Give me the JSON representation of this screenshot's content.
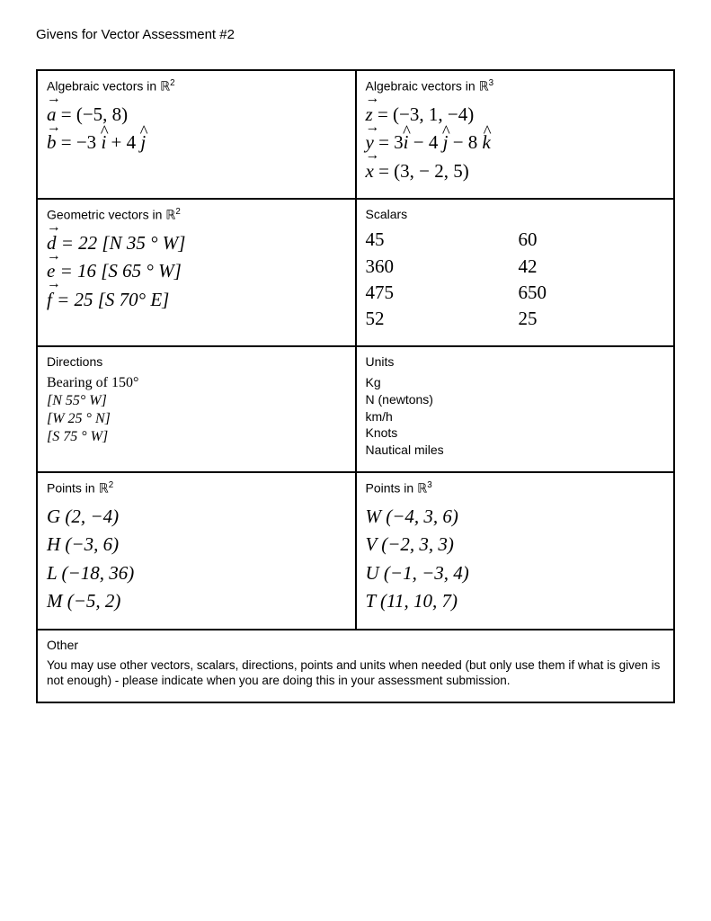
{
  "title": "Givens for Vector Assessment #2",
  "cells": {
    "alg_r2": {
      "header_pre": "Algebraic vectors in ",
      "space": "ℝ",
      "exp": "2",
      "a_lhs": "a",
      "a_rhs": " = (−5, 8)",
      "b_lhs": "b",
      "b_mid": " = −3 ",
      "b_i": "i",
      "b_plus": " + 4 ",
      "b_j": "j"
    },
    "alg_r3": {
      "header_pre": "Algebraic vectors in ",
      "space": "ℝ",
      "exp": "3",
      "z_lhs": "z",
      "z_rhs": " = (−3, 1, −4)",
      "y_lhs": "y",
      "y_eq": " = 3",
      "y_i": "i",
      "y_m4": " − 4 ",
      "y_j": "j",
      "y_m8": " − 8 ",
      "y_k": "k",
      "x_lhs": "x",
      "x_rhs": " = (3,  − 2,  5)"
    },
    "geo_r2": {
      "header_pre": "Geometric vectors in ",
      "space": "ℝ",
      "exp": "2",
      "d_lhs": "d",
      "d_rhs": " = 22  [N 35 ° W]",
      "e_lhs": "e",
      "e_rhs": " = 16  [S 65 °  W]",
      "f_lhs": "f",
      "f_rhs": " = 25  [S 70°  E]"
    },
    "scalars": {
      "header": "Scalars",
      "values": [
        "45",
        "60",
        "360",
        "42",
        "475",
        "650",
        "52",
        "25"
      ]
    },
    "directions": {
      "header": "Directions",
      "bearing_label": "Bearing of ",
      "bearing_value": "150°",
      "d1": "[N 55° W]",
      "d2": "[W 25 ° N]",
      "d3": "[S 75 ° W]"
    },
    "units": {
      "header": "Units",
      "u1": "Kg",
      "u2": "N (newtons)",
      "u3": "km/h",
      "u4": "Knots",
      "u5": "Nautical miles"
    },
    "pts_r2": {
      "header_pre": "Points in ",
      "space": "ℝ",
      "exp": "2",
      "p1": "G (2, −4)",
      "p2": "H (−3, 6)",
      "p3": "L (−18, 36)",
      "p4": "M (−5, 2)"
    },
    "pts_r3": {
      "header_pre": "Points in ",
      "space": "ℝ",
      "exp": "3",
      "p1": "W (−4, 3,  6)",
      "p2": "V (−2, 3,  3)",
      "p3": "U (−1, −3,  4)",
      "p4": "T (11, 10, 7)"
    },
    "other": {
      "header": "Other",
      "note": "You may use other vectors, scalars, directions, points and units when needed (but only use them if what is given is not enough) - please indicate when you are doing this in your assessment submission."
    }
  }
}
